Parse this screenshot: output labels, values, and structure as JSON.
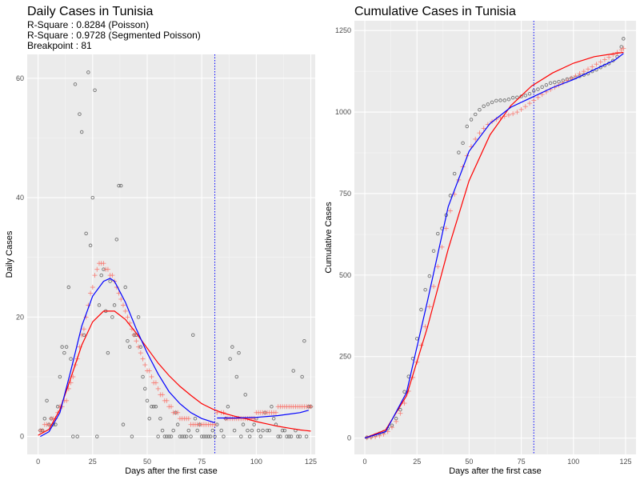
{
  "chart_data": [
    {
      "type": "scatter",
      "title": "Daily Cases in Tunisia",
      "subtitle": [
        "R-Square : 0.8284 (Poisson)",
        "R-Square : 0.9728 (Segmented Poisson)",
        "Breakpoint : 81"
      ],
      "xlabel": "Days after the first case",
      "ylabel": "Daily Cases",
      "xlim": [
        -5,
        127
      ],
      "ylim": [
        -3,
        64
      ],
      "xticks": [
        0,
        25,
        50,
        75,
        100,
        125
      ],
      "yticks": [
        0,
        20,
        40,
        60
      ],
      "grid": true,
      "breakpoint": 81,
      "series": [
        {
          "kind": "points",
          "color": "#555555",
          "x": [
            1,
            2,
            3,
            4,
            5,
            6,
            7,
            8,
            9,
            10,
            11,
            12,
            13,
            14,
            15,
            16,
            17,
            18,
            19,
            20,
            21,
            22,
            23,
            24,
            25,
            26,
            27,
            28,
            29,
            30,
            31,
            32,
            33,
            34,
            35,
            36,
            37,
            38,
            39,
            40,
            41,
            42,
            43,
            44,
            45,
            46,
            47,
            48,
            49,
            50,
            51,
            52,
            53,
            54,
            55,
            56,
            57,
            58,
            59,
            60,
            61,
            62,
            63,
            64,
            65,
            66,
            67,
            68,
            69,
            70,
            71,
            72,
            73,
            74,
            75,
            76,
            77,
            78,
            79,
            80,
            81,
            82,
            84,
            85,
            86,
            87,
            88,
            89,
            90,
            91,
            92,
            93,
            94,
            95,
            96,
            97,
            98,
            99,
            100,
            101,
            102,
            103,
            104,
            105,
            106,
            107,
            108,
            109,
            110,
            111,
            112,
            113,
            114,
            115,
            116,
            117,
            118,
            119,
            120,
            121,
            122,
            123,
            124,
            125
          ],
          "y": [
            1,
            1,
            3,
            6,
            2,
            3,
            2,
            2,
            5,
            10,
            15,
            14,
            15,
            25,
            13,
            0,
            59,
            0,
            54,
            51,
            17,
            34,
            61,
            32,
            40,
            58,
            0,
            22,
            27,
            28,
            21,
            14,
            26,
            20,
            22,
            33,
            42,
            42,
            2,
            25,
            16,
            15,
            0,
            17,
            17,
            20,
            15,
            10,
            8,
            6,
            3,
            5,
            5,
            5,
            0,
            3,
            1,
            0,
            0,
            0,
            0,
            1,
            4,
            2,
            0,
            0,
            0,
            0,
            1,
            0,
            17,
            3,
            1,
            2,
            0,
            0,
            0,
            0,
            0,
            1,
            0,
            2,
            1,
            0,
            3,
            5,
            13,
            15,
            1,
            10,
            14,
            0,
            2,
            7,
            1,
            0,
            1,
            2,
            3,
            1,
            0,
            1,
            4,
            1,
            1,
            5,
            3,
            2,
            0,
            0,
            1,
            1,
            0,
            0,
            0,
            11,
            1,
            0,
            0,
            10,
            16,
            0,
            5,
            5
          ]
        },
        {
          "kind": "points",
          "color": "#f8766d",
          "x": [
            1,
            2,
            3,
            4,
            5,
            6,
            7,
            8,
            9,
            10,
            11,
            12,
            13,
            14,
            15,
            16,
            17,
            18,
            19,
            20,
            21,
            22,
            23,
            24,
            25,
            26,
            27,
            28,
            29,
            30,
            31,
            32,
            33,
            34,
            35,
            36,
            37,
            38,
            39,
            40,
            41,
            42,
            43,
            44,
            45,
            46,
            47,
            48,
            49,
            50,
            51,
            52,
            53,
            54,
            55,
            56,
            57,
            58,
            59,
            60,
            61,
            62,
            63,
            64,
            65,
            66,
            67,
            68,
            69,
            70,
            71,
            72,
            73,
            74,
            75,
            76,
            77,
            78,
            79,
            80,
            81,
            82,
            84,
            85,
            86,
            87,
            88,
            89,
            90,
            91,
            92,
            93,
            94,
            95,
            96,
            97,
            98,
            99,
            100,
            101,
            102,
            103,
            104,
            105,
            106,
            107,
            108,
            109,
            110,
            111,
            112,
            113,
            114,
            115,
            116,
            117,
            118,
            119,
            120,
            121,
            122,
            123,
            124,
            125
          ],
          "y": [
            1,
            1,
            2,
            2,
            2,
            3,
            3,
            3,
            4,
            5,
            5,
            6,
            6,
            8,
            9,
            10,
            12,
            13,
            15,
            17,
            18,
            20,
            22,
            24,
            25,
            27,
            28,
            29,
            29,
            29,
            28,
            28,
            27,
            27,
            26,
            25,
            24,
            23,
            22,
            21,
            20,
            19,
            18,
            17,
            16,
            15,
            14,
            13,
            12,
            11,
            11,
            10,
            9,
            9,
            8,
            7,
            7,
            6,
            6,
            5,
            5,
            4,
            4,
            4,
            3,
            3,
            3,
            3,
            3,
            2,
            2,
            2,
            2,
            2,
            2,
            2,
            2,
            2,
            2,
            2,
            2,
            4,
            4,
            4,
            3,
            3,
            3,
            3,
            3,
            3,
            3,
            3,
            3,
            3,
            3,
            3,
            3,
            3,
            4,
            4,
            4,
            4,
            4,
            4,
            4,
            4,
            4,
            4,
            5,
            5,
            5,
            5,
            5,
            5,
            5,
            5,
            5,
            5,
            5,
            5,
            5,
            5,
            5,
            5
          ]
        },
        {
          "kind": "line",
          "name": "Poisson",
          "color": "#ff0000",
          "x": [
            0,
            5,
            10,
            15,
            20,
            25,
            30,
            35,
            40,
            45,
            50,
            55,
            60,
            65,
            70,
            75,
            80,
            85,
            90,
            95,
            100,
            105,
            110,
            115,
            120,
            125
          ],
          "y": [
            0.2,
            1.2,
            4.5,
            9.8,
            15.3,
            19.2,
            21.0,
            21.0,
            19.6,
            17.3,
            14.8,
            12.3,
            10.2,
            8.4,
            6.9,
            5.5,
            4.6,
            3.9,
            3.4,
            3.0,
            2.5,
            2.1,
            1.7,
            1.4,
            1.1,
            0.9
          ]
        },
        {
          "kind": "line",
          "name": "Segmented Poisson",
          "color": "#0000ff",
          "x": [
            1,
            5,
            10,
            15,
            20,
            25,
            30,
            33,
            35,
            40,
            45,
            50,
            55,
            60,
            65,
            70,
            75,
            81
          ],
          "y": [
            0,
            0.8,
            4,
            11,
            18.5,
            23.5,
            26,
            26.5,
            26,
            22.5,
            18,
            14,
            10.5,
            7.5,
            5.5,
            4,
            3,
            2.3
          ]
        },
        {
          "kind": "line",
          "name": "Segmented Poisson",
          "color": "#0000ff",
          "x": [
            82,
            90,
            100,
            110,
            120,
            124
          ],
          "y": [
            3.1,
            3.1,
            3.2,
            3.5,
            4.0,
            4.4
          ]
        }
      ]
    },
    {
      "type": "scatter",
      "title": "Cumulative Cases in Tunisia",
      "xlabel": "Days after the first case",
      "ylabel": "Cumulative Cases",
      "xlim": [
        -5,
        130
      ],
      "ylim": [
        -50,
        1280
      ],
      "xticks": [
        0,
        25,
        50,
        75,
        100,
        125
      ],
      "yticks": [
        0,
        250,
        500,
        750,
        1000,
        1250
      ],
      "grid": true,
      "breakpoint": 81,
      "series": [
        {
          "kind": "points",
          "color": "#555555",
          "x": [
            1,
            3,
            5,
            7,
            9,
            11,
            13,
            15,
            17,
            19,
            21,
            23,
            25,
            27,
            29,
            31,
            33,
            35,
            37,
            39,
            41,
            43,
            45,
            47,
            49,
            51,
            53,
            55,
            57,
            59,
            61,
            63,
            65,
            67,
            69,
            71,
            73,
            75,
            77,
            79,
            81,
            83,
            85,
            87,
            89,
            91,
            93,
            95,
            97,
            99,
            101,
            103,
            105,
            107,
            109,
            111,
            113,
            115,
            117,
            119,
            121,
            123,
            124
          ],
          "y": [
            2,
            4,
            9,
            14,
            19,
            29,
            39,
            60,
            87,
            142,
            189,
            244,
            305,
            394,
            455,
            497,
            574,
            627,
            643,
            684,
            744,
            811,
            876,
            905,
            956,
            977,
            993,
            1007,
            1018,
            1024,
            1030,
            1035,
            1036,
            1036,
            1039,
            1044,
            1045,
            1048,
            1051,
            1056,
            1065,
            1070,
            1077,
            1083,
            1089,
            1091,
            1093,
            1097,
            1101,
            1104,
            1106,
            1110,
            1114,
            1118,
            1125,
            1130,
            1137,
            1143,
            1149,
            1158,
            1170,
            1200,
            1225
          ]
        },
        {
          "kind": "points",
          "color": "#f8766d",
          "x": [
            1,
            3,
            5,
            7,
            9,
            11,
            13,
            15,
            17,
            19,
            21,
            23,
            25,
            27,
            29,
            31,
            33,
            35,
            37,
            39,
            41,
            43,
            45,
            47,
            49,
            51,
            53,
            55,
            57,
            59,
            61,
            63,
            65,
            67,
            69,
            71,
            73,
            75,
            77,
            79,
            81,
            83,
            85,
            87,
            89,
            91,
            93,
            95,
            97,
            99,
            101,
            103,
            105,
            107,
            109,
            111,
            113,
            115,
            117,
            119,
            121,
            123,
            124
          ],
          "y": [
            1,
            2,
            4,
            7,
            12,
            20,
            33,
            51,
            76,
            107,
            144,
            186,
            233,
            285,
            342,
            403,
            465,
            526,
            586,
            643,
            697,
            748,
            792,
            832,
            866,
            894,
            917,
            936,
            950,
            962,
            971,
            978,
            983,
            987,
            991,
            995,
            1000,
            1008,
            1017,
            1027,
            1036,
            1045,
            1054,
            1062,
            1069,
            1076,
            1083,
            1090,
            1097,
            1104,
            1111,
            1118,
            1125,
            1132,
            1139,
            1147,
            1154,
            1161,
            1168,
            1176,
            1183,
            1191,
            1195
          ]
        },
        {
          "kind": "line",
          "name": "Poisson",
          "color": "#ff0000",
          "x": [
            0,
            10,
            20,
            30,
            40,
            50,
            60,
            70,
            80,
            90,
            100,
            110,
            120,
            124
          ],
          "y": [
            0,
            25,
            130,
            340,
            580,
            790,
            930,
            1020,
            1080,
            1120,
            1150,
            1170,
            1180,
            1183
          ]
        },
        {
          "kind": "line",
          "name": "Segmented Poisson",
          "color": "#0000ff",
          "x": [
            0,
            10,
            20,
            30,
            40,
            50,
            60,
            70,
            80,
            90,
            100,
            110,
            120,
            124
          ],
          "y": [
            0,
            20,
            140,
            420,
            710,
            880,
            965,
            1015,
            1045,
            1075,
            1100,
            1130,
            1160,
            1180
          ]
        }
      ]
    }
  ]
}
